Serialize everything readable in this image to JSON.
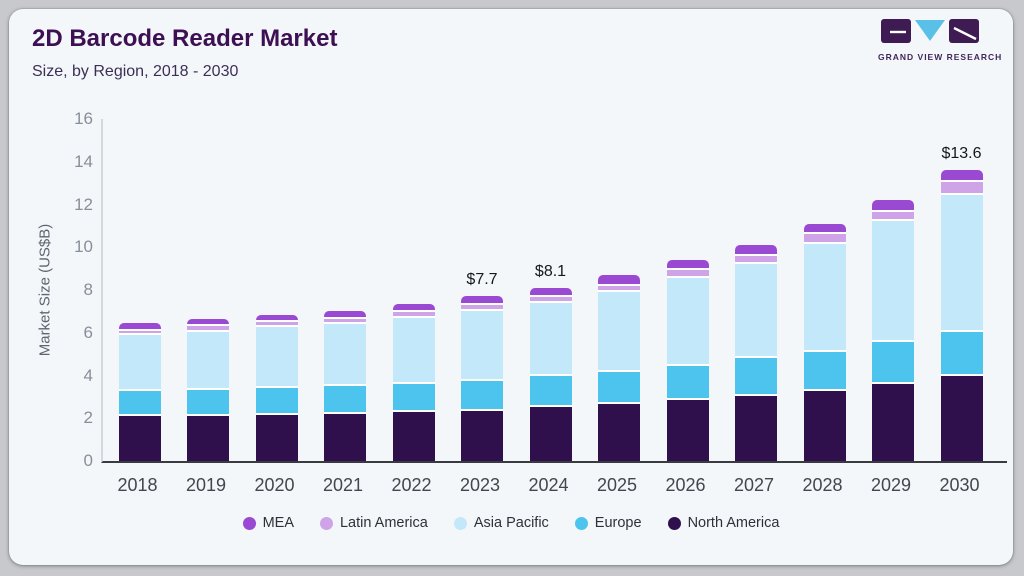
{
  "card": {
    "title": "2D Barcode Reader Market",
    "subtitle": "Size, by Region, 2018 - 2030",
    "logo_text": "GRAND VIEW RESEARCH"
  },
  "colors": {
    "card_bg": "#f4f7fa",
    "frame_bg": "#c7c9cc",
    "title_text": "#3d1053",
    "x_axis_line": "#3a3b41",
    "y_axis_line": "#d4d8dc",
    "logo_purple": "#3e1b52",
    "logo_blue": "#5bc0e8"
  },
  "chart_data": {
    "type": "bar",
    "stacked": true,
    "title": "2D Barcode Reader Market Size, by Region, 2018 - 2030",
    "xlabel": "",
    "ylabel": "Market Size (US$B)",
    "ylim": [
      0,
      16
    ],
    "yticks": [
      0,
      2,
      4,
      6,
      8,
      10,
      12,
      14,
      16
    ],
    "grid": false,
    "legend_position": "bottom",
    "categories": [
      "2018",
      "2019",
      "2020",
      "2021",
      "2022",
      "2023",
      "2024",
      "2025",
      "2026",
      "2027",
      "2028",
      "2029",
      "2030"
    ],
    "series": [
      {
        "name": "North America",
        "color": "#300f4d",
        "values": [
          2.2,
          2.2,
          2.25,
          2.3,
          2.4,
          2.45,
          2.6,
          2.75,
          2.95,
          3.15,
          3.35,
          3.7,
          4.05
        ]
      },
      {
        "name": "Europe",
        "color": "#4cc4ee",
        "values": [
          1.15,
          1.2,
          1.25,
          1.3,
          1.32,
          1.4,
          1.45,
          1.5,
          1.6,
          1.75,
          1.85,
          1.95,
          2.1
        ]
      },
      {
        "name": "Asia Pacific",
        "color": "#c2e8f9",
        "values": [
          2.65,
          2.75,
          2.85,
          2.9,
          3.05,
          3.25,
          3.45,
          3.75,
          4.1,
          4.4,
          5.05,
          5.65,
          6.4
        ]
      },
      {
        "name": "Latin America",
        "color": "#cfa3e8",
        "values": [
          0.2,
          0.25,
          0.25,
          0.25,
          0.3,
          0.28,
          0.25,
          0.3,
          0.4,
          0.4,
          0.45,
          0.45,
          0.6
        ]
      },
      {
        "name": "MEA",
        "color": "#9a49d2",
        "values": [
          0.25,
          0.25,
          0.25,
          0.28,
          0.28,
          0.32,
          0.35,
          0.4,
          0.35,
          0.4,
          0.4,
          0.45,
          0.45
        ]
      }
    ],
    "totals": [
      6.45,
      6.65,
      6.85,
      7.03,
      7.35,
      7.7,
      8.1,
      8.7,
      9.4,
      10.1,
      11.1,
      12.2,
      13.6
    ],
    "bar_labels": {
      "2023": "$7.7",
      "2024": "$8.1",
      "2030": "$13.6"
    },
    "legend": [
      {
        "label": "MEA",
        "color": "#9a49d2"
      },
      {
        "label": "Latin America",
        "color": "#cfa3e8"
      },
      {
        "label": "Asia Pacific",
        "color": "#c2e8f9"
      },
      {
        "label": "Europe",
        "color": "#4cc4ee"
      },
      {
        "label": "North America",
        "color": "#300f4d"
      }
    ]
  }
}
